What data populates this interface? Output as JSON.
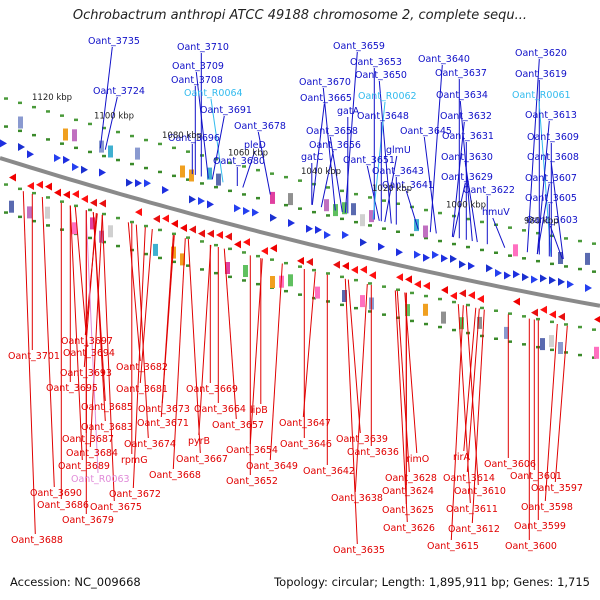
{
  "title": "Ochrobactrum anthropi ATCC 49188 chromosome 2, complete sequ...",
  "accession": "Accession: NC_009668",
  "summary": "Topology: circular; Length: 1,895,911 bp; Genes: 1,715",
  "scale_labels": [
    "1120 kbp",
    "1100 kbp",
    "1080 kbp",
    "1060 kbp",
    "1040 kbp",
    "1020 kbp",
    "1000 kbp",
    "980 kbp"
  ],
  "colors": {
    "forward_label": "#1010c8",
    "reverse_label": "#e00000",
    "rna_label": "#33bbee",
    "rna_label_reverse": "#e08ad8",
    "backbone": "#8a8a8a"
  },
  "upper_labels": [
    {
      "text": "Oant_3735",
      "type": "gene"
    },
    {
      "text": "Oant_3710",
      "type": "gene"
    },
    {
      "text": "Oant_3709",
      "type": "gene"
    },
    {
      "text": "Oant_3724",
      "type": "gene"
    },
    {
      "text": "Oant_3708",
      "type": "gene"
    },
    {
      "text": "Oant_R0064",
      "type": "rna"
    },
    {
      "text": "Oant_3691",
      "type": "gene"
    },
    {
      "text": "Oant_3696",
      "type": "gene"
    },
    {
      "text": "Oant_3678",
      "type": "gene"
    },
    {
      "text": "pleD",
      "type": "gene"
    },
    {
      "text": "Oant_3680",
      "type": "gene"
    },
    {
      "text": "Oant_3670",
      "type": "gene"
    },
    {
      "text": "Oant_3665",
      "type": "gene"
    },
    {
      "text": "gatA",
      "type": "gene"
    },
    {
      "text": "Oant_3658",
      "type": "gene"
    },
    {
      "text": "Oant_3656",
      "type": "gene"
    },
    {
      "text": "gatC",
      "type": "gene"
    },
    {
      "text": "Oant_3651",
      "type": "gene"
    },
    {
      "text": "Oant_3659",
      "type": "gene"
    },
    {
      "text": "Oant_3653",
      "type": "gene"
    },
    {
      "text": "Oant_3650",
      "type": "gene"
    },
    {
      "text": "Oant_R0062",
      "type": "rna"
    },
    {
      "text": "Oant_3648",
      "type": "gene"
    },
    {
      "text": "Oant_3645",
      "type": "gene"
    },
    {
      "text": "glmU",
      "type": "gene"
    },
    {
      "text": "Oant_3643",
      "type": "gene"
    },
    {
      "text": "Oant_3641",
      "type": "gene"
    },
    {
      "text": "Oant_3640",
      "type": "gene"
    },
    {
      "text": "Oant_3637",
      "type": "gene"
    },
    {
      "text": "Oant_3634",
      "type": "gene"
    },
    {
      "text": "Oant_3632",
      "type": "gene"
    },
    {
      "text": "Oant_3631",
      "type": "gene"
    },
    {
      "text": "Oant_3630",
      "type": "gene"
    },
    {
      "text": "Oant_3629",
      "type": "gene"
    },
    {
      "text": "Oant_3622",
      "type": "gene"
    },
    {
      "text": "hmuV",
      "type": "gene"
    },
    {
      "text": "Oant_3620",
      "type": "gene"
    },
    {
      "text": "Oant_3619",
      "type": "gene"
    },
    {
      "text": "Oant_R0061",
      "type": "rna"
    },
    {
      "text": "Oant_3613",
      "type": "gene"
    },
    {
      "text": "Oant_3609",
      "type": "gene"
    },
    {
      "text": "Oant_3608",
      "type": "gene"
    },
    {
      "text": "Oant_3607",
      "type": "gene"
    },
    {
      "text": "Oant_3605",
      "type": "gene"
    },
    {
      "text": "Oant_3603",
      "type": "gene"
    }
  ],
  "lower_labels": [
    {
      "text": "Oant_3697",
      "type": "gene"
    },
    {
      "text": "Oant_3701",
      "type": "gene"
    },
    {
      "text": "Oant_3694",
      "type": "gene"
    },
    {
      "text": "Oant_3693",
      "type": "gene"
    },
    {
      "text": "Oant_3695",
      "type": "gene"
    },
    {
      "text": "Oant_3682",
      "type": "gene"
    },
    {
      "text": "Oant_3681",
      "type": "gene"
    },
    {
      "text": "Oant_3669",
      "type": "gene"
    },
    {
      "text": "Oant_3685",
      "type": "gene"
    },
    {
      "text": "Oant_3673",
      "type": "gene"
    },
    {
      "text": "Oant_3664",
      "type": "gene"
    },
    {
      "text": "Oant_3683",
      "type": "gene"
    },
    {
      "text": "Oant_3671",
      "type": "gene"
    },
    {
      "text": "lipB",
      "type": "gene"
    },
    {
      "text": "Oant_3657",
      "type": "gene"
    },
    {
      "text": "Oant_3647",
      "type": "gene"
    },
    {
      "text": "Oant_3687",
      "type": "gene"
    },
    {
      "text": "Oant_3674",
      "type": "gene"
    },
    {
      "text": "pyrB",
      "type": "gene"
    },
    {
      "text": "Oant_3646",
      "type": "gene"
    },
    {
      "text": "Oant_3639",
      "type": "gene"
    },
    {
      "text": "Oant_3684",
      "type": "gene"
    },
    {
      "text": "rpmG",
      "type": "gene"
    },
    {
      "text": "Oant_3667",
      "type": "gene"
    },
    {
      "text": "Oant_3654",
      "type": "gene"
    },
    {
      "text": "Oant_3636",
      "type": "gene"
    },
    {
      "text": "Oant_3689",
      "type": "gene"
    },
    {
      "text": "Oant_3649",
      "type": "gene"
    },
    {
      "text": "Oant_3642",
      "type": "gene"
    },
    {
      "text": "rimO",
      "type": "gene"
    },
    {
      "text": "rirA",
      "type": "gene"
    },
    {
      "text": "Oant_3606",
      "type": "gene"
    },
    {
      "text": "Oant_R0063",
      "type": "rna"
    },
    {
      "text": "Oant_3668",
      "type": "gene"
    },
    {
      "text": "Oant_3652",
      "type": "gene"
    },
    {
      "text": "Oant_3628",
      "type": "gene"
    },
    {
      "text": "Oant_3614",
      "type": "gene"
    },
    {
      "text": "Oant_3601",
      "type": "gene"
    },
    {
      "text": "Oant_3690",
      "type": "gene"
    },
    {
      "text": "Oant_3672",
      "type": "gene"
    },
    {
      "text": "Oant_3624",
      "type": "gene"
    },
    {
      "text": "Oant_3610",
      "type": "gene"
    },
    {
      "text": "Oant_3597",
      "type": "gene"
    },
    {
      "text": "Oant_3686",
      "type": "gene"
    },
    {
      "text": "Oant_3675",
      "type": "gene"
    },
    {
      "text": "Oant_3638",
      "type": "gene"
    },
    {
      "text": "Oant_3625",
      "type": "gene"
    },
    {
      "text": "Oant_3611",
      "type": "gene"
    },
    {
      "text": "Oant_3598",
      "type": "gene"
    },
    {
      "text": "Oant_3679",
      "type": "gene"
    },
    {
      "text": "Oant_3626",
      "type": "gene"
    },
    {
      "text": "Oant_3612",
      "type": "gene"
    },
    {
      "text": "Oant_3599",
      "type": "gene"
    },
    {
      "text": "Oant_3688",
      "type": "gene"
    },
    {
      "text": "Oant_3615",
      "type": "gene"
    },
    {
      "text": "Oant_3600",
      "type": "gene"
    },
    {
      "text": "Oant_3635",
      "type": "gene"
    }
  ]
}
